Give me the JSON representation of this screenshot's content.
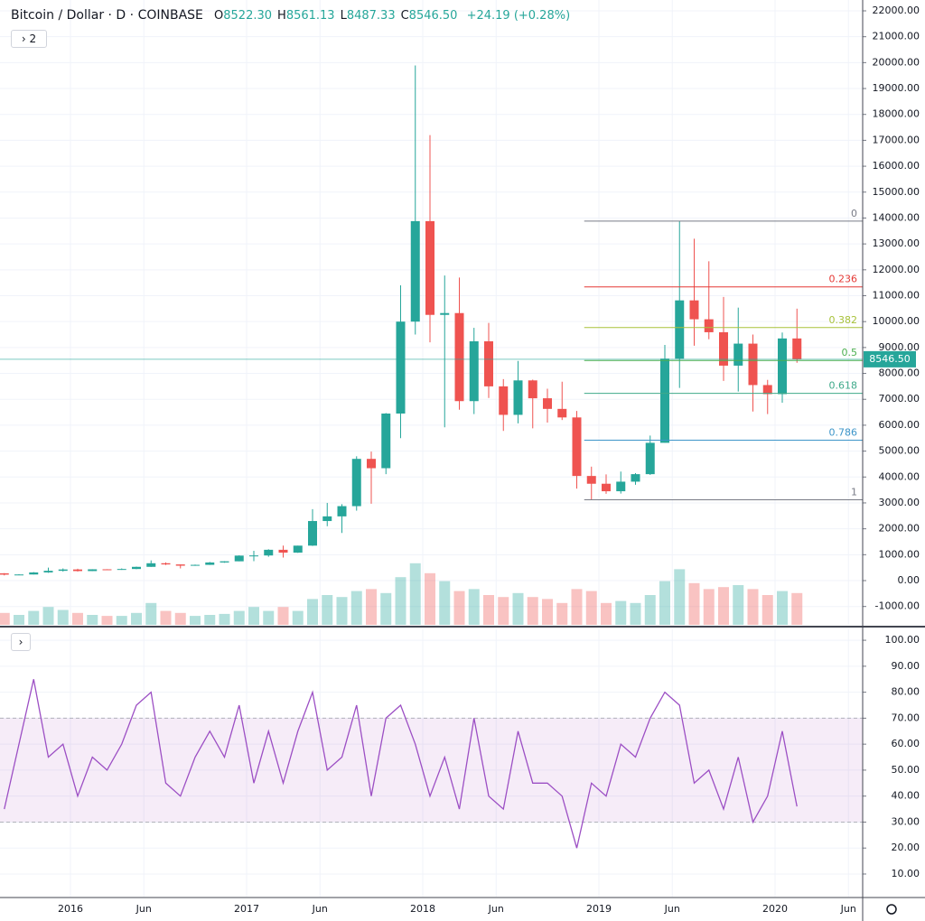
{
  "header": {
    "symbol": "Bitcoin / Dollar · D · COINBASE",
    "ohlc": [
      {
        "label": "O",
        "value": "8522.30"
      },
      {
        "label": "H",
        "value": "8561.13"
      },
      {
        "label": "L",
        "value": "8487.33"
      },
      {
        "label": "C",
        "value": "8546.50"
      }
    ],
    "change": "+24.19 (+0.28%)",
    "indicator_toggle": "2"
  },
  "chart_data": [
    {
      "type": "candlestick",
      "categories": [
        "2015-08",
        "2015-09",
        "2015-10",
        "2015-11",
        "2015-12",
        "2016-01",
        "2016-02",
        "2016-03",
        "2016-04",
        "2016-05",
        "2016-06",
        "2016-07",
        "2016-08",
        "2016-09",
        "2016-10",
        "2016-11",
        "2016-12",
        "2017-01",
        "2017-02",
        "2017-03",
        "2017-04",
        "2017-05",
        "2017-06",
        "2017-07",
        "2017-08",
        "2017-09",
        "2017-10",
        "2017-11",
        "2017-12",
        "2018-01",
        "2018-02",
        "2018-03",
        "2018-04",
        "2018-05",
        "2018-06",
        "2018-07",
        "2018-08",
        "2018-09",
        "2018-10",
        "2018-11",
        "2018-12",
        "2019-01",
        "2019-02",
        "2019-03",
        "2019-04",
        "2019-05",
        "2019-06",
        "2019-07",
        "2019-08",
        "2019-09",
        "2019-10",
        "2019-11",
        "2019-12",
        "2020-01",
        "2020-02"
      ],
      "open": [
        280,
        230,
        236,
        315,
        378,
        430,
        368,
        436,
        416,
        448,
        531,
        670,
        624,
        575,
        608,
        700,
        745,
        965,
        970,
        1190,
        1080,
        1350,
        2300,
        2480,
        2875,
        4700,
        4340,
        6450,
        10000,
        13880,
        10260,
        10330,
        6930,
        9240,
        7500,
        6400,
        7730,
        7040,
        6630,
        6300,
        4040,
        3740,
        3450,
        3820,
        4110,
        5320,
        8570,
        10820,
        10090,
        9590,
        8300,
        9150,
        7550,
        7200,
        9350
      ],
      "high": [
        290,
        245,
        330,
        500,
        470,
        460,
        440,
        440,
        470,
        540,
        780,
        700,
        625,
        620,
        720,
        750,
        975,
        1150,
        1210,
        1350,
        1350,
        2760,
        3000,
        2950,
        4800,
        4980,
        6470,
        11400,
        19890,
        17200,
        11780,
        11700,
        9760,
        9950,
        7780,
        8480,
        7760,
        7410,
        7680,
        6550,
        4400,
        4100,
        4210,
        4150,
        5600,
        9100,
        13880,
        13200,
        12330,
        10950,
        10540,
        9500,
        7750,
        9580,
        10500
      ],
      "low": [
        200,
        225,
        236,
        300,
        350,
        350,
        365,
        405,
        415,
        440,
        530,
        600,
        470,
        570,
        605,
        690,
        745,
        750,
        920,
        890,
        1070,
        1340,
        2100,
        1840,
        2700,
        2970,
        4110,
        5500,
        9500,
        9200,
        5920,
        6600,
        6430,
        7050,
        5780,
        6070,
        5880,
        6100,
        6200,
        3550,
        3120,
        3350,
        3360,
        3700,
        4080,
        5320,
        7440,
        9070,
        9320,
        7710,
        7300,
        6530,
        6430,
        6870,
        8410
      ],
      "close": [
        230,
        236,
        315,
        378,
        430,
        368,
        436,
        416,
        448,
        531,
        670,
        624,
        575,
        608,
        700,
        745,
        965,
        970,
        1190,
        1080,
        1350,
        2300,
        2480,
        2875,
        4700,
        4340,
        6450,
        10000,
        13880,
        10260,
        10330,
        6930,
        9240,
        7500,
        6400,
        7730,
        7040,
        6630,
        6300,
        4040,
        3740,
        3450,
        3820,
        4110,
        5320,
        8570,
        10820,
        10090,
        9590,
        8300,
        9150,
        7550,
        7200,
        9350,
        8546.5
      ],
      "volume": [
        12,
        10,
        14,
        18,
        15,
        12,
        10,
        9,
        9,
        12,
        22,
        14,
        12,
        9,
        10,
        11,
        14,
        18,
        14,
        18,
        14,
        26,
        30,
        28,
        34,
        36,
        32,
        48,
        62,
        52,
        44,
        34,
        36,
        30,
        28,
        32,
        28,
        26,
        22,
        36,
        34,
        22,
        24,
        22,
        30,
        44,
        56,
        42,
        36,
        38,
        40,
        36,
        30,
        34,
        32
      ],
      "up_color": "#26a69a",
      "down_color": "#ef5350",
      "ylim": [
        -1708,
        22418
      ],
      "yticks": [
        {
          "value": -1000,
          "label": "-1000.00"
        },
        {
          "value": 0,
          "label": "0.00"
        },
        {
          "value": 1000,
          "label": "1000.00"
        },
        {
          "value": 2000,
          "label": "2000.00"
        },
        {
          "value": 3000,
          "label": "3000.00"
        },
        {
          "value": 4000,
          "label": "4000.00"
        },
        {
          "value": 5000,
          "label": "5000.00"
        },
        {
          "value": 6000,
          "label": "6000.00"
        },
        {
          "value": 7000,
          "label": "7000.00"
        },
        {
          "value": 8000,
          "label": "8000.00"
        },
        {
          "value": 9000,
          "label": "9000.00"
        },
        {
          "value": 10000,
          "label": "10000.00"
        },
        {
          "value": 11000,
          "label": "11000.00"
        },
        {
          "value": 12000,
          "label": "12000.00"
        },
        {
          "value": 13000,
          "label": "13000.00"
        },
        {
          "value": 14000,
          "label": "14000.00"
        },
        {
          "value": 15000,
          "label": "15000.00"
        },
        {
          "value": 16000,
          "label": "16000.00"
        },
        {
          "value": 17000,
          "label": "17000.00"
        },
        {
          "value": 18000,
          "label": "18000.00"
        },
        {
          "value": 19000,
          "label": "19000.00"
        },
        {
          "value": 20000,
          "label": "20000.00"
        },
        {
          "value": 21000,
          "label": "21000.00"
        },
        {
          "value": 22000,
          "label": "22000.00"
        }
      ],
      "xticks": [
        {
          "value": "2016-01",
          "label": "2016"
        },
        {
          "value": "2016-06",
          "label": "Jun"
        },
        {
          "value": "2017-01",
          "label": "2017"
        },
        {
          "value": "2017-06",
          "label": "Jun"
        },
        {
          "value": "2018-01",
          "label": "2018"
        },
        {
          "value": "2018-06",
          "label": "Jun"
        },
        {
          "value": "2019-01",
          "label": "2019"
        },
        {
          "value": "2019-06",
          "label": "Jun"
        },
        {
          "value": "2020-01",
          "label": "2020"
        },
        {
          "value": "2020-06",
          "label": "Jun"
        }
      ],
      "grid": true,
      "last_price": {
        "value": 8546.5,
        "label": "8546.50"
      },
      "fib": {
        "start": "2018-12",
        "high": 13880,
        "low": 3120,
        "levels": [
          {
            "level": 0,
            "color": "#787b86"
          },
          {
            "level": 0.236,
            "color": "#e53935"
          },
          {
            "level": 0.382,
            "color": "#a8c23a"
          },
          {
            "level": 0.5,
            "color": "#4caf50"
          },
          {
            "level": 0.618,
            "color": "#3fa98a"
          },
          {
            "level": 0.786,
            "color": "#3d95c9"
          },
          {
            "level": 1,
            "color": "#787b86"
          }
        ]
      }
    },
    {
      "type": "line",
      "values": [
        35,
        60,
        85,
        55,
        60,
        40,
        55,
        50,
        60,
        75,
        80,
        45,
        40,
        55,
        65,
        55,
        75,
        45,
        65,
        45,
        65,
        80,
        50,
        55,
        75,
        40,
        70,
        75,
        60,
        40,
        55,
        35,
        70,
        40,
        35,
        65,
        45,
        45,
        40,
        20,
        45,
        40,
        60,
        55,
        70,
        80,
        75,
        45,
        50,
        35,
        55,
        30,
        40,
        65,
        36
      ],
      "color": "#9c4fc4",
      "ylim": [
        1.3,
        104.2
      ],
      "yticks": [
        {
          "value": 10,
          "label": "10.00"
        },
        {
          "value": 20,
          "label": "20.00"
        },
        {
          "value": 30,
          "label": "30.00"
        },
        {
          "value": 40,
          "label": "40.00"
        },
        {
          "value": 50,
          "label": "50.00"
        },
        {
          "value": 60,
          "label": "60.00"
        },
        {
          "value": 70,
          "label": "70.00"
        },
        {
          "value": 80,
          "label": "80.00"
        },
        {
          "value": 90,
          "label": "90.00"
        },
        {
          "value": 100,
          "label": "100.00"
        }
      ],
      "band": [
        30,
        70
      ],
      "band_color": "#9c27b0",
      "grid": true
    }
  ]
}
